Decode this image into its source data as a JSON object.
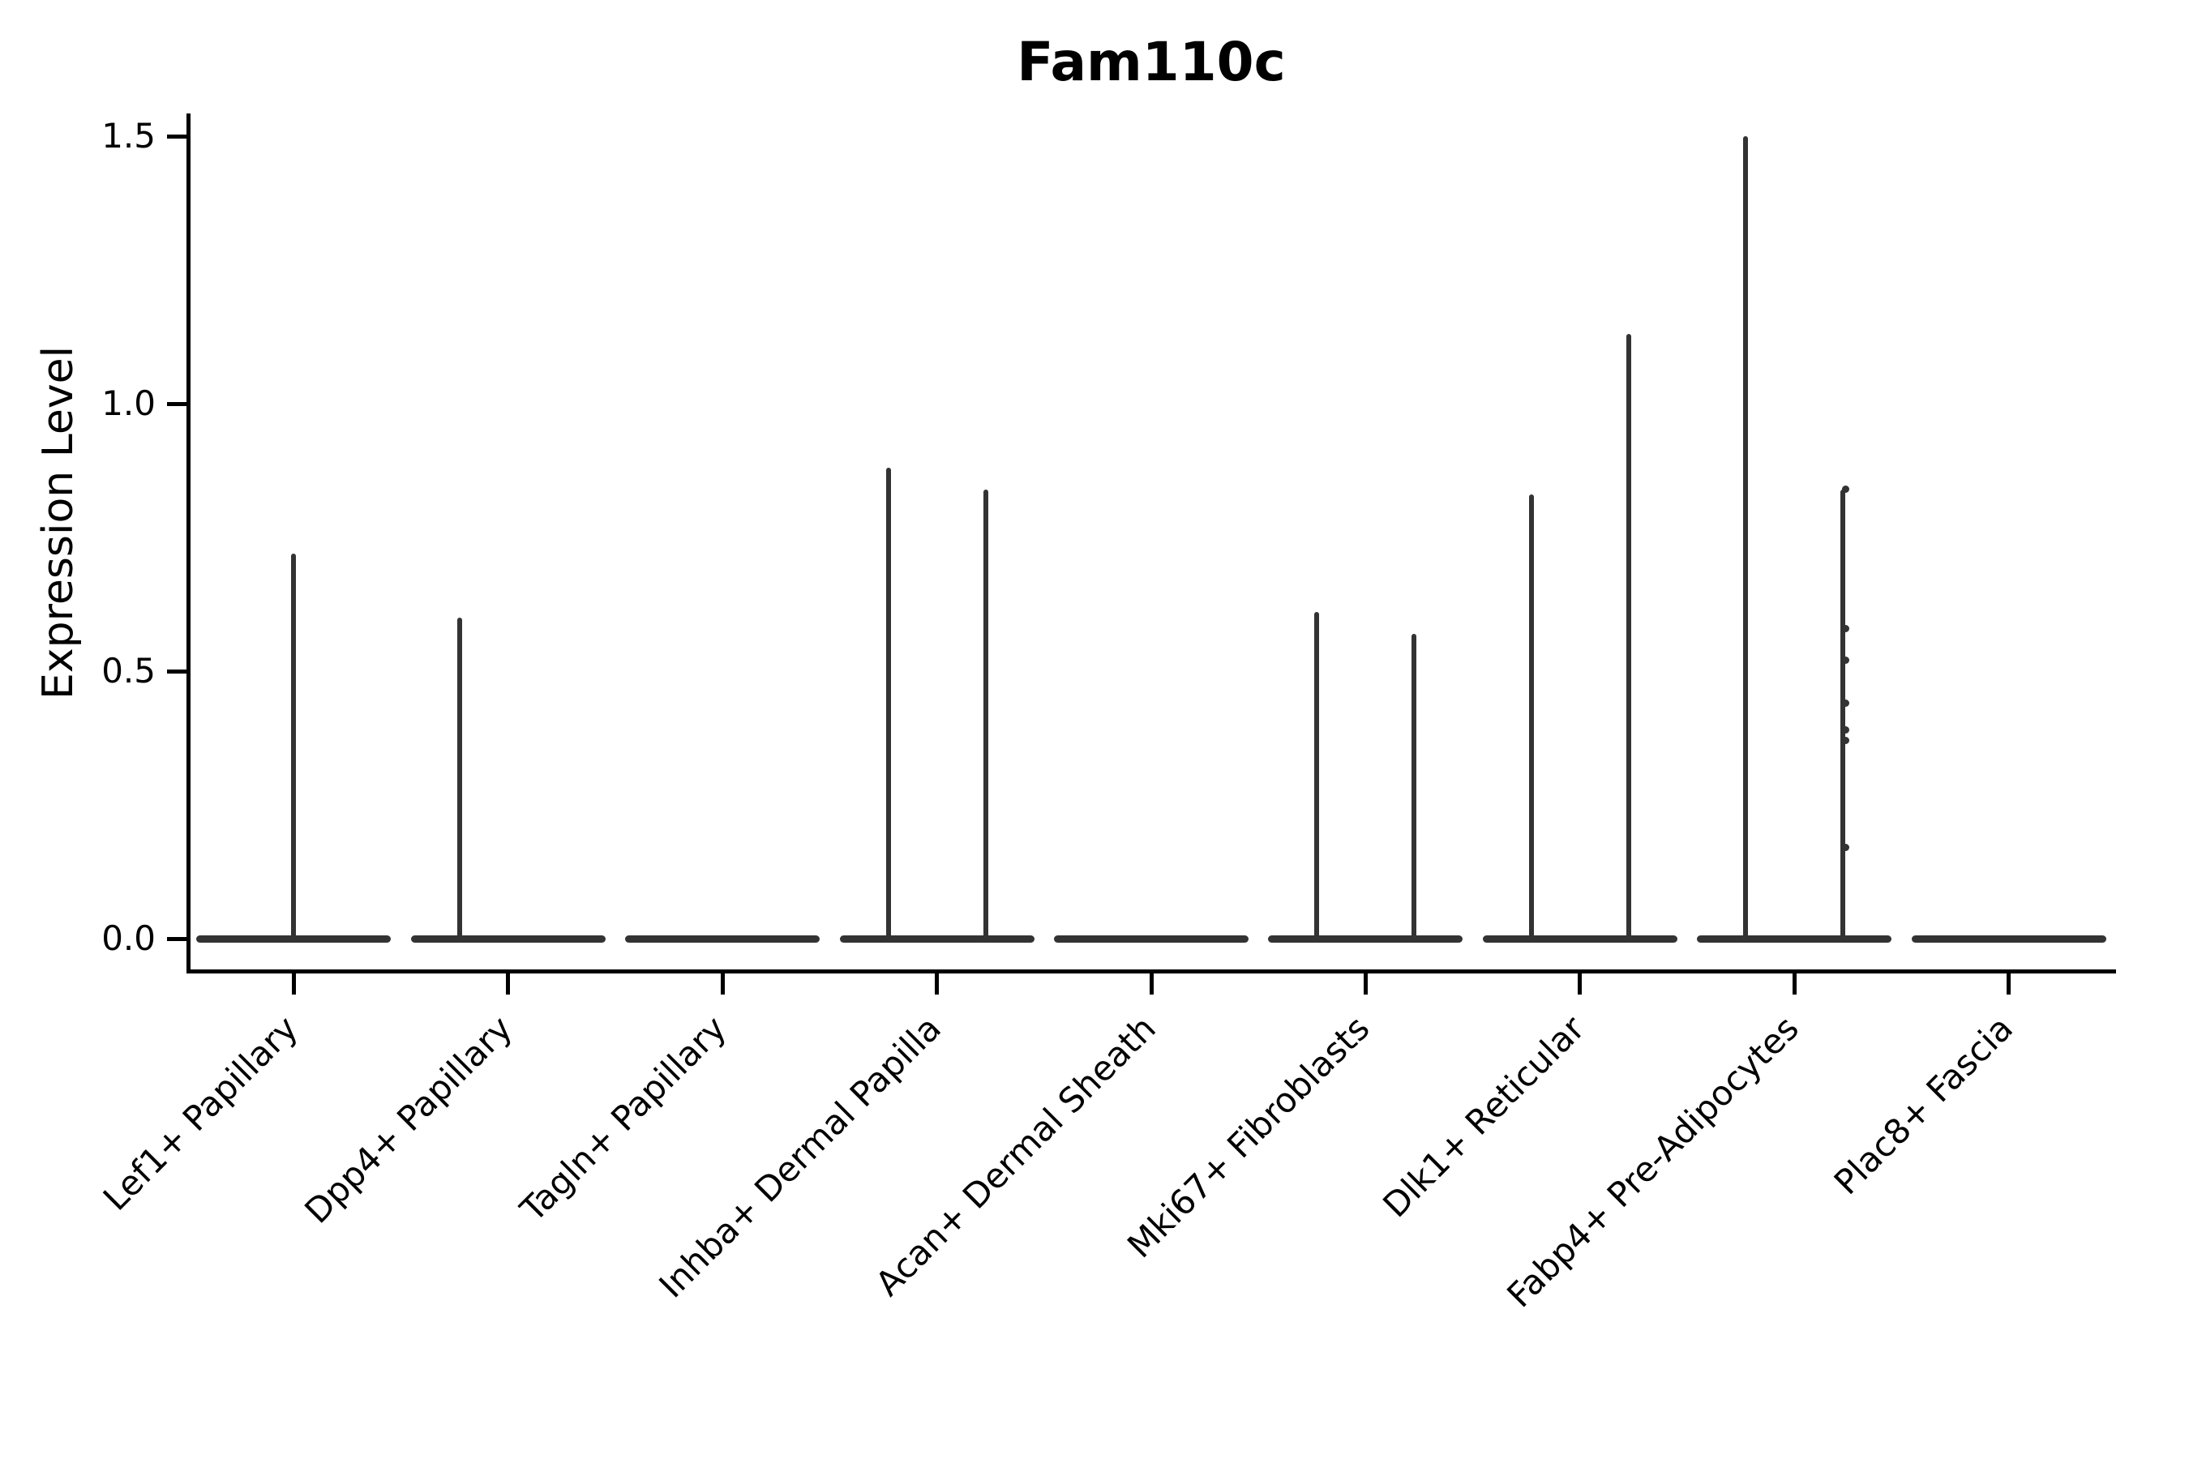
{
  "chart_data": {
    "type": "violin",
    "title": "Fam110c",
    "xlabel": "",
    "ylabel": "Expression Level",
    "ylim": [
      -0.07,
      1.54
    ],
    "yticks": [
      0.0,
      0.5,
      1.0,
      1.5
    ],
    "grid": false,
    "legend": null,
    "categories": [
      "Lef1+ Papillary",
      "Dpp4+ Papillary",
      "Tagln+ Papillary",
      "Inhba+ Dermal Papilla",
      "Acan+ Dermal Sheath",
      "Mki67+ Fibroblasts",
      "Dlk1+ Reticular",
      "Fabp4+ Pre-Adipocytes",
      "Plac8+ Fascia"
    ],
    "violins": [
      {
        "category": "Lef1+ Papillary",
        "baseline_value": 0.0,
        "spikes": [
          {
            "pos": "center",
            "max": 0.72
          }
        ],
        "points": []
      },
      {
        "category": "Dpp4+ Papillary",
        "baseline_value": 0.0,
        "spikes": [
          {
            "pos": "left",
            "max": 0.6
          }
        ],
        "points": []
      },
      {
        "category": "Tagln+ Papillary",
        "baseline_value": 0.0,
        "spikes": [],
        "points": []
      },
      {
        "category": "Inhba+ Dermal Papilla",
        "baseline_value": 0.0,
        "spikes": [
          {
            "pos": "left",
            "max": 0.88
          },
          {
            "pos": "right",
            "max": 0.84
          }
        ],
        "points": []
      },
      {
        "category": "Acan+ Dermal Sheath",
        "baseline_value": 0.0,
        "spikes": [],
        "points": []
      },
      {
        "category": "Mki67+ Fibroblasts",
        "baseline_value": 0.0,
        "spikes": [
          {
            "pos": "left",
            "max": 0.61
          },
          {
            "pos": "right",
            "max": 0.57
          }
        ],
        "points": []
      },
      {
        "category": "Dlk1+ Reticular",
        "baseline_value": 0.0,
        "spikes": [
          {
            "pos": "left",
            "max": 0.83
          },
          {
            "pos": "right",
            "max": 1.13
          }
        ],
        "points": []
      },
      {
        "category": "Fabp4+ Pre-Adipocytes",
        "baseline_value": 0.0,
        "spikes": [
          {
            "pos": "left",
            "max": 1.5
          },
          {
            "pos": "right",
            "max": 0.84
          }
        ],
        "points": [
          {
            "pos": "right",
            "values": [
              0.84,
              0.58,
              0.52,
              0.44,
              0.39,
              0.37,
              0.17
            ]
          }
        ]
      },
      {
        "category": "Plac8+ Fascia",
        "baseline_value": 0.0,
        "spikes": [],
        "points": []
      }
    ],
    "colors": {
      "violin": "#333333",
      "axis": "#000000",
      "text": "#000000",
      "background": "#ffffff"
    }
  }
}
